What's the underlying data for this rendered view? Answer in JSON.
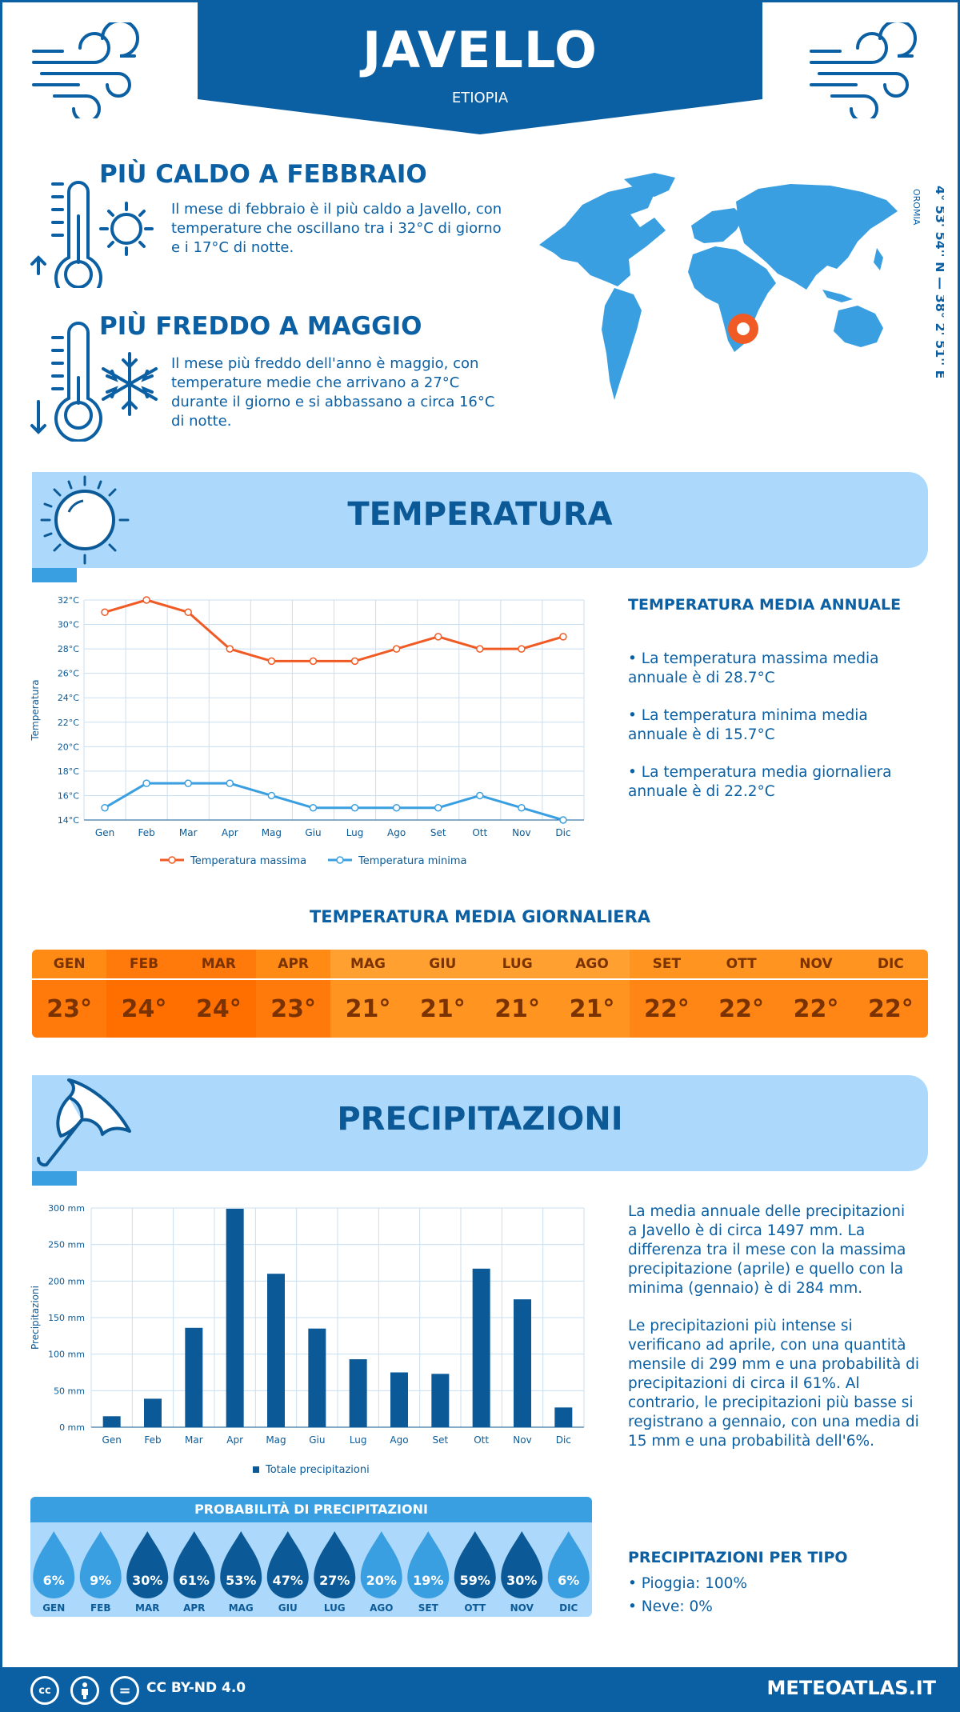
{
  "header": {
    "title": "JAVELLO",
    "country": "ETIOPIA"
  },
  "coords": {
    "text": "4° 53' 54'' N — 38° 2' 51'' E",
    "region": "OROMIA"
  },
  "warmest": {
    "title": "PIÙ CALDO A FEBBRAIO",
    "text": "Il mese di febbraio è il più caldo a Javello, con temperature che oscillano tra i 32°C di giorno e i 17°C di notte."
  },
  "coldest": {
    "title": "PIÙ FREDDO A MAGGIO",
    "text": "Il mese più freddo dell'anno è maggio, con temperature medie che arrivano a 27°C durante il giorno e si abbassano a circa 16°C di notte."
  },
  "temperature_section": {
    "title": "TEMPERATURA",
    "side_title": "TEMPERATURA MEDIA ANNUALE",
    "bullets": [
      "• La temperatura massima media annuale è di 28.7°C",
      "• La temperatura minima media annuale è di 15.7°C",
      "• La temperatura media giornaliera annuale è di 22.2°C"
    ],
    "daily_title": "TEMPERATURA MEDIA GIORNALIERA",
    "daily": [
      {
        "m": "GEN",
        "v": "23°",
        "c": "#ff7a0a",
        "h": "#ff8a14"
      },
      {
        "m": "FEB",
        "v": "24°",
        "c": "#ff6f00",
        "h": "#ff7a0a"
      },
      {
        "m": "MAR",
        "v": "24°",
        "c": "#ff6f00",
        "h": "#ff7a0a"
      },
      {
        "m": "APR",
        "v": "23°",
        "c": "#ff7a0a",
        "h": "#ff8a14"
      },
      {
        "m": "MAG",
        "v": "21°",
        "c": "#ff9420",
        "h": "#ffa030"
      },
      {
        "m": "GIU",
        "v": "21°",
        "c": "#ff9420",
        "h": "#ffa030"
      },
      {
        "m": "LUG",
        "v": "21°",
        "c": "#ff9420",
        "h": "#ffa030"
      },
      {
        "m": "AGO",
        "v": "21°",
        "c": "#ff9420",
        "h": "#ffa030"
      },
      {
        "m": "SET",
        "v": "22°",
        "c": "#ff8614",
        "h": "#ff9420"
      },
      {
        "m": "OTT",
        "v": "22°",
        "c": "#ff8614",
        "h": "#ff9420"
      },
      {
        "m": "NOV",
        "v": "22°",
        "c": "#ff8614",
        "h": "#ff9420"
      },
      {
        "m": "DIC",
        "v": "22°",
        "c": "#ff8614",
        "h": "#ff9420"
      }
    ]
  },
  "precip_section": {
    "title": "PRECIPITAZIONI",
    "p1": "La media annuale delle precipitazioni a Javello è di circa 1497 mm. La differenza tra il mese con la massima precipitazione (aprile) e quello con la minima (gennaio) è di 284 mm.",
    "p2": "Le precipitazioni più intense si verificano ad aprile, con una quantità mensile di 299 mm e una probabilità di precipitazioni di circa il 61%. Al contrario, le precipitazioni più basse si registrano a gennaio, con una media di 15 mm e una probabilità dell'6%.",
    "prob_title": "PROBABILITÀ DI PRECIPITAZIONI",
    "prob": [
      {
        "m": "GEN",
        "v": "6%",
        "c": "#3a9fe0"
      },
      {
        "m": "FEB",
        "v": "9%",
        "c": "#3a9fe0"
      },
      {
        "m": "MAR",
        "v": "30%",
        "c": "#0b5a97"
      },
      {
        "m": "APR",
        "v": "61%",
        "c": "#0b5a97"
      },
      {
        "m": "MAG",
        "v": "53%",
        "c": "#0b5a97"
      },
      {
        "m": "GIU",
        "v": "47%",
        "c": "#0b5a97"
      },
      {
        "m": "LUG",
        "v": "27%",
        "c": "#0b5a97"
      },
      {
        "m": "AGO",
        "v": "20%",
        "c": "#3a9fe0"
      },
      {
        "m": "SET",
        "v": "19%",
        "c": "#3a9fe0"
      },
      {
        "m": "OTT",
        "v": "59%",
        "c": "#0b5a97"
      },
      {
        "m": "NOV",
        "v": "30%",
        "c": "#0b5a97"
      },
      {
        "m": "DIC",
        "v": "6%",
        "c": "#3a9fe0"
      }
    ],
    "type_title": "PRECIPITAZIONI PER TIPO",
    "types": [
      "• Pioggia: 100%",
      "• Neve: 0%"
    ]
  },
  "footer": {
    "license": "CC BY-ND 4.0",
    "site": "METEOATLAS.IT",
    "cc1": "cc",
    "cc3": "="
  },
  "chart_data": [
    {
      "type": "line",
      "categories": [
        "Gen",
        "Feb",
        "Mar",
        "Apr",
        "Mag",
        "Giu",
        "Lug",
        "Ago",
        "Set",
        "Ott",
        "Nov",
        "Dic"
      ],
      "series": [
        {
          "name": "Temperatura massima",
          "color": "#f05a24",
          "values": [
            31,
            32,
            31,
            28,
            27,
            27,
            27,
            28,
            29,
            28,
            28,
            29
          ]
        },
        {
          "name": "Temperatura minima",
          "color": "#3a9fe0",
          "values": [
            15,
            17,
            17,
            17,
            16,
            15,
            15,
            15,
            15,
            16,
            15,
            14
          ]
        }
      ],
      "ylabel": "Temperatura",
      "ylim": [
        14,
        32
      ],
      "yticks": [
        "14°C",
        "16°C",
        "18°C",
        "20°C",
        "22°C",
        "24°C",
        "26°C",
        "28°C",
        "30°C",
        "32°C"
      ],
      "grid": true,
      "legend": "bottom"
    },
    {
      "type": "bar",
      "categories": [
        "Gen",
        "Feb",
        "Mar",
        "Apr",
        "Mag",
        "Giu",
        "Lug",
        "Ago",
        "Set",
        "Ott",
        "Nov",
        "Dic"
      ],
      "series": [
        {
          "name": "Totale precipitazioni",
          "color": "#0b5a97",
          "values": [
            15,
            39,
            136,
            299,
            210,
            135,
            93,
            75,
            73,
            217,
            175,
            27
          ]
        }
      ],
      "ylabel": "Precipitazioni",
      "ylim": [
        0,
        300
      ],
      "yticks": [
        "0 mm",
        "50 mm",
        "100 mm",
        "150 mm",
        "200 mm",
        "250 mm",
        "300 mm"
      ],
      "grid": true,
      "legend": "bottom"
    }
  ]
}
